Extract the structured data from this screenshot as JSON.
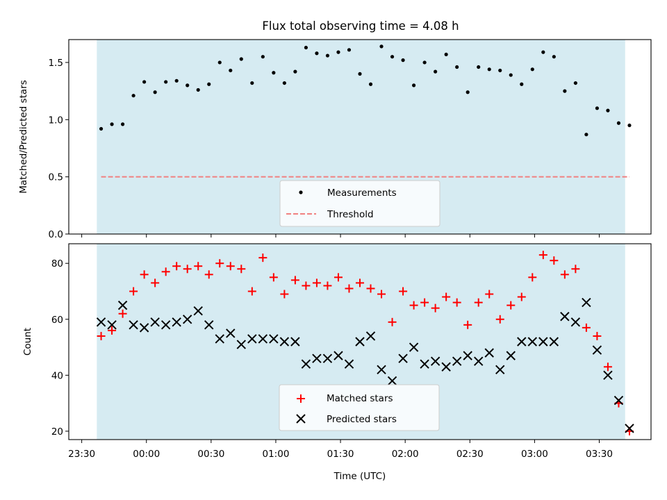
{
  "title": "Flux total observing time = 4.08 h",
  "colors": {
    "shade": "#add8e6",
    "threshold": "#f08080",
    "measurement": "#000000",
    "matched": "#ff0000",
    "predicted": "#000000"
  },
  "chart_data": [
    {
      "type": "scatter",
      "ylabel": "Matched/Predicted stars",
      "xlabel": "",
      "ylim": [
        0,
        1.7
      ],
      "yticks": [
        "0.0",
        "0.5",
        "1.0",
        "1.5"
      ],
      "legend_placement": "lower center",
      "series": [
        {
          "name": "Measurements",
          "marker": "dot",
          "x": [
            -21,
            -16,
            -11,
            -6,
            -1,
            4,
            9,
            14,
            19,
            24,
            29,
            34,
            39,
            44,
            49,
            54,
            59,
            64,
            69,
            74,
            79,
            84,
            89,
            94,
            99,
            104,
            109,
            114,
            119,
            124,
            129,
            134,
            139,
            144,
            149,
            154,
            159,
            164,
            169,
            174,
            179,
            184,
            189,
            194,
            199,
            204,
            209,
            214,
            219,
            224,
            229
          ],
          "y": [
            0.92,
            0.96,
            0.96,
            1.21,
            1.33,
            1.24,
            1.33,
            1.34,
            1.3,
            1.26,
            1.31,
            1.5,
            1.43,
            1.53,
            1.32,
            1.55,
            1.41,
            1.32,
            1.42,
            1.63,
            1.58,
            1.56,
            1.59,
            1.61,
            1.4,
            1.31,
            1.64,
            1.55,
            1.52,
            1.3,
            1.5,
            1.42,
            1.57,
            1.46,
            1.24,
            1.46,
            1.44,
            1.43,
            1.39,
            1.31,
            1.44,
            1.59,
            1.55,
            1.25,
            1.32,
            0.87,
            1.1,
            1.08,
            0.97,
            0.95,
            null
          ]
        },
        {
          "name": "Threshold",
          "style": "dashed",
          "x": [
            -21,
            224
          ],
          "y": [
            0.5,
            0.5
          ]
        }
      ]
    },
    {
      "type": "scatter",
      "ylabel": "Count",
      "xlabel": "Time (UTC)",
      "ylim": [
        17,
        87
      ],
      "yticks": [
        "20",
        "40",
        "60",
        "80"
      ],
      "legend_placement": "lower center",
      "series": [
        {
          "name": "Matched stars",
          "marker": "plus",
          "x": [
            -21,
            -16,
            -11,
            -6,
            -1,
            4,
            9,
            14,
            19,
            24,
            29,
            34,
            39,
            44,
            49,
            54,
            59,
            64,
            69,
            74,
            79,
            84,
            89,
            94,
            99,
            104,
            109,
            114,
            119,
            124,
            129,
            134,
            139,
            144,
            149,
            154,
            159,
            164,
            169,
            174,
            179,
            184,
            189,
            194,
            199,
            204,
            209,
            214,
            219,
            224
          ],
          "y": [
            54,
            56,
            62,
            70,
            76,
            73,
            77,
            79,
            78,
            79,
            76,
            80,
            79,
            78,
            70,
            82,
            75,
            69,
            74,
            72,
            73,
            72,
            75,
            71,
            73,
            71,
            69,
            59,
            70,
            65,
            66,
            64,
            68,
            66,
            58,
            66,
            69,
            60,
            65,
            68,
            75,
            83,
            81,
            76,
            78,
            57,
            54,
            43,
            30,
            20
          ]
        },
        {
          "name": "Predicted stars",
          "marker": "cross",
          "x": [
            -21,
            -16,
            -11,
            -6,
            -1,
            4,
            9,
            14,
            19,
            24,
            29,
            34,
            39,
            44,
            49,
            54,
            59,
            64,
            69,
            74,
            79,
            84,
            89,
            94,
            99,
            104,
            109,
            114,
            119,
            124,
            129,
            134,
            139,
            144,
            149,
            154,
            159,
            164,
            169,
            174,
            179,
            184,
            189,
            194,
            199,
            204,
            209,
            214,
            219,
            224
          ],
          "y": [
            59,
            58,
            65,
            58,
            57,
            59,
            58,
            59,
            60,
            63,
            58,
            53,
            55,
            51,
            53,
            53,
            53,
            52,
            52,
            44,
            46,
            46,
            47,
            44,
            52,
            54,
            42,
            38,
            46,
            50,
            44,
            45,
            43,
            45,
            47,
            45,
            48,
            42,
            47,
            52,
            52,
            52,
            52,
            61,
            59,
            66,
            49,
            40,
            31,
            21
          ]
        }
      ]
    }
  ],
  "x_axis": {
    "tick_labels": [
      "23:30",
      "00:00",
      "00:30",
      "01:00",
      "01:30",
      "02:00",
      "02:30",
      "03:00",
      "03:30"
    ],
    "tick_values": [
      -30,
      0,
      30,
      60,
      90,
      120,
      150,
      180,
      210
    ],
    "xlim": [
      -36,
      234
    ],
    "shaded_span": [
      -23,
      222
    ]
  }
}
